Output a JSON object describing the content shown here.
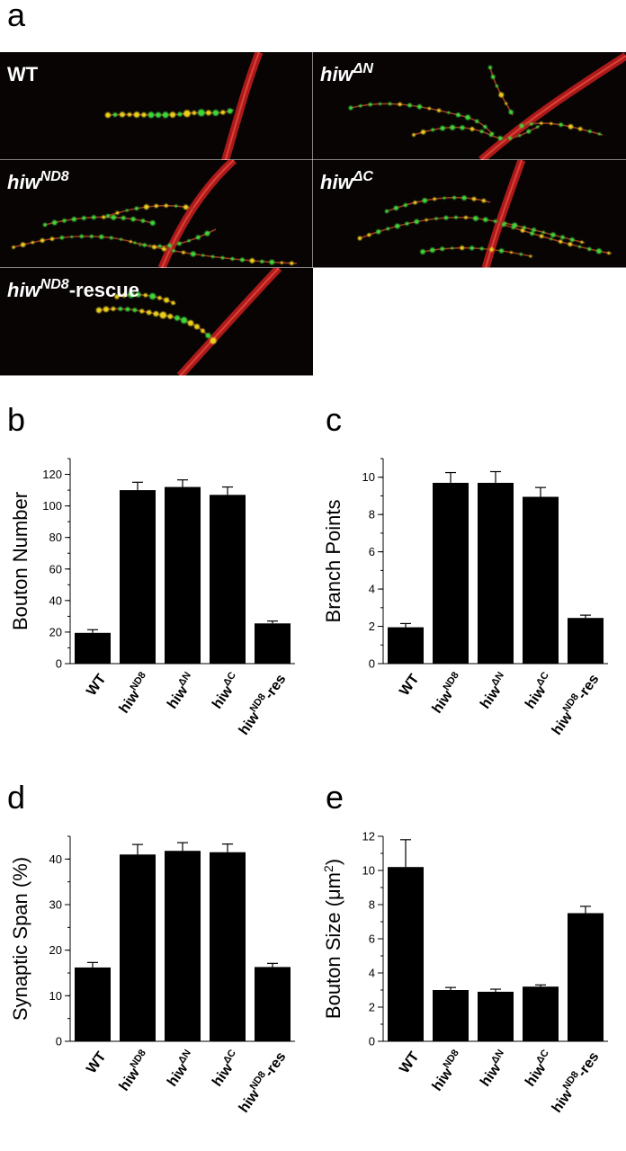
{
  "panels": {
    "a": {
      "letter": "a"
    },
    "b": {
      "letter": "b"
    },
    "c": {
      "letter": "c"
    },
    "d": {
      "letter": "d"
    },
    "e": {
      "letter": "e"
    }
  },
  "micrographs": [
    {
      "label_base": "WT",
      "label_sup": "",
      "label_tail": ""
    },
    {
      "label_base": "hiw",
      "label_sup": "ΔN",
      "label_tail": ""
    },
    {
      "label_base": "hiw",
      "label_sup": "ND8",
      "label_tail": ""
    },
    {
      "label_base": "hiw",
      "label_sup": "ΔC",
      "label_tail": ""
    },
    {
      "label_base": "hiw",
      "label_sup": "ND8",
      "label_tail": "-rescue"
    }
  ],
  "colors": {
    "bar": "#000000",
    "axon": "#c81e1e",
    "bouton_green": "#3ad83a",
    "bouton_yellow": "#e8d21e"
  },
  "chart_data": [
    {
      "type": "bar",
      "panel": "b",
      "categories": [
        {
          "base": "WT",
          "sup": ""
        },
        {
          "base": "hiw",
          "sup": "ND8"
        },
        {
          "base": "hiw",
          "sup": "ΔN"
        },
        {
          "base": "hiw",
          "sup": "ΔC"
        },
        {
          "base": "hiw",
          "sup": "ND8",
          "tail": "-res"
        }
      ],
      "values": [
        19.5,
        110,
        112,
        107,
        25.5
      ],
      "errors": [
        2,
        5,
        4.5,
        5,
        1.5
      ],
      "ylabel": "Bouton Number",
      "ylabel_sup": "",
      "ylabel_tail": "",
      "ylim": [
        0,
        130
      ],
      "yticks": [
        0,
        20,
        40,
        60,
        80,
        100,
        120
      ],
      "minor_step": 10
    },
    {
      "type": "bar",
      "panel": "c",
      "categories": [
        {
          "base": "WT",
          "sup": ""
        },
        {
          "base": "hiw",
          "sup": "ND8"
        },
        {
          "base": "hiw",
          "sup": "ΔN"
        },
        {
          "base": "hiw",
          "sup": "ΔC"
        },
        {
          "base": "hiw",
          "sup": "ND8",
          "tail": "-res"
        }
      ],
      "values": [
        1.95,
        9.7,
        9.7,
        8.95,
        2.45
      ],
      "errors": [
        0.2,
        0.55,
        0.6,
        0.5,
        0.15
      ],
      "ylabel": "Branch Points",
      "ylabel_sup": "",
      "ylabel_tail": "",
      "ylim": [
        0,
        11
      ],
      "yticks": [
        0,
        2,
        4,
        6,
        8,
        10
      ],
      "minor_step": 1
    },
    {
      "type": "bar",
      "panel": "d",
      "categories": [
        {
          "base": "WT",
          "sup": ""
        },
        {
          "base": "hiw",
          "sup": "ND8"
        },
        {
          "base": "hiw",
          "sup": "ΔN"
        },
        {
          "base": "hiw",
          "sup": "ΔC"
        },
        {
          "base": "hiw",
          "sup": "ND8",
          "tail": "-res"
        }
      ],
      "values": [
        16.2,
        41,
        41.8,
        41.5,
        16.3
      ],
      "errors": [
        1.1,
        2.2,
        1.8,
        1.8,
        0.8
      ],
      "ylabel": "Synaptic Span (%)",
      "ylabel_sup": "",
      "ylabel_tail": "",
      "ylim": [
        0,
        45
      ],
      "yticks": [
        0,
        10,
        20,
        30,
        40
      ],
      "minor_step": 5
    },
    {
      "type": "bar",
      "panel": "e",
      "categories": [
        {
          "base": "WT",
          "sup": ""
        },
        {
          "base": "hiw",
          "sup": "ND8"
        },
        {
          "base": "hiw",
          "sup": "ΔN"
        },
        {
          "base": "hiw",
          "sup": "ΔC"
        },
        {
          "base": "hiw",
          "sup": "ND8",
          "tail": "-res"
        }
      ],
      "values": [
        10.2,
        3.0,
        2.9,
        3.2,
        7.5
      ],
      "errors": [
        1.6,
        0.15,
        0.15,
        0.1,
        0.4
      ],
      "ylabel": "Bouton Size (μm",
      "ylabel_sup": "2",
      "ylabel_tail": ")",
      "ylim": [
        0,
        12
      ],
      "yticks": [
        0,
        2,
        4,
        6,
        8,
        10,
        12
      ],
      "minor_step": 1
    }
  ]
}
